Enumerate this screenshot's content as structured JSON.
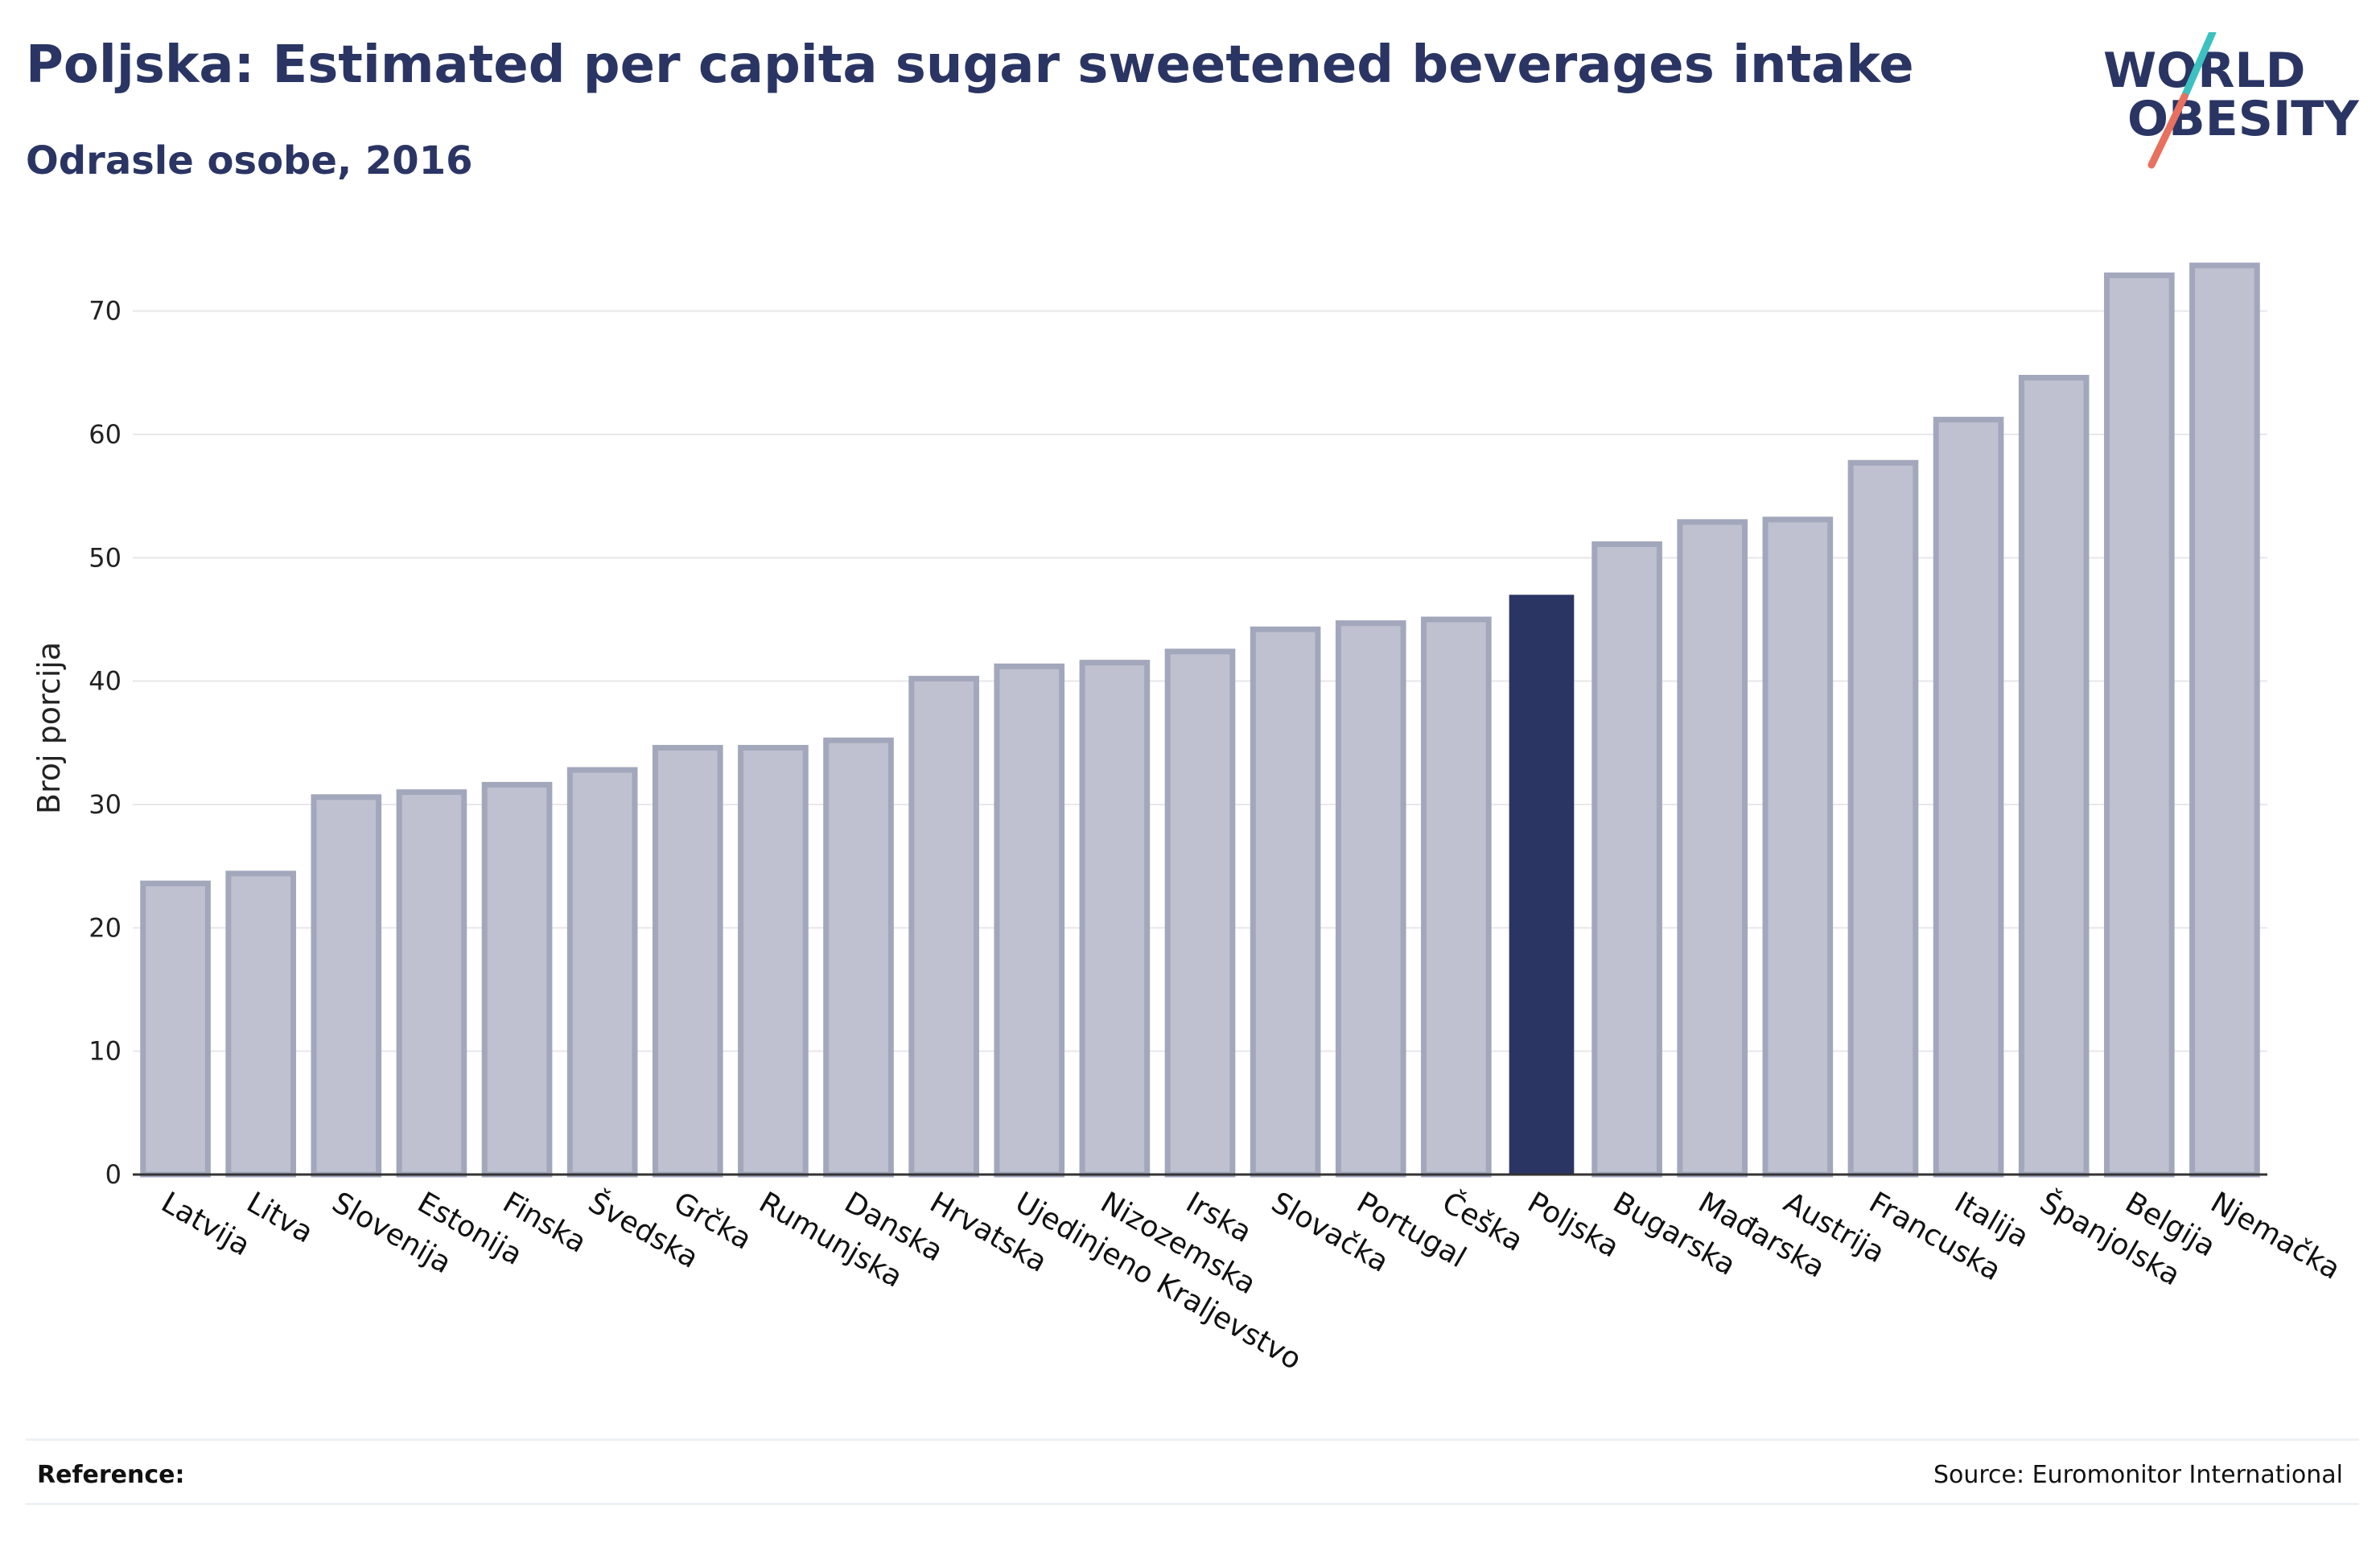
{
  "header": {
    "title": "Poljska: Estimated per capita sugar sweetened beverages intake",
    "subtitle": "Odrasle osobe, 2016"
  },
  "logo": {
    "line1": "WORLD",
    "line2": "OBESITY",
    "icon": "slash-logo-icon",
    "colors": {
      "text": "#2a3564",
      "slash_top": "#3cc1c0",
      "slash_bottom": "#e8705f"
    }
  },
  "footer": {
    "reference_label": "Reference:",
    "source": "Source: Euromonitor International"
  },
  "chart_data": {
    "type": "bar",
    "title": "Poljska: Estimated per capita sugar sweetened beverages intake",
    "subtitle": "Odrasle osobe, 2016",
    "xlabel": "",
    "ylabel": "Broj porcija",
    "ylim": [
      0,
      75
    ],
    "yticks": [
      0,
      10,
      20,
      30,
      40,
      50,
      60,
      70
    ],
    "grid": true,
    "highlight": "Poljska",
    "colors": {
      "bar": "#bfc1d0",
      "bar_border": "#a3a7bc",
      "highlight": "#2a3564",
      "grid": "#e8e8e8",
      "axis": "#333333"
    },
    "categories": [
      "Latvija",
      "Litva",
      "Slovenija",
      "Estonija",
      "Finska",
      "Švedska",
      "Grčka",
      "Rumunjska",
      "Danska",
      "Hrvatska",
      "Ujedinjeno Kraljevstvo",
      "Nizozemska",
      "Irska",
      "Slovačka",
      "Portugal",
      "Češka",
      "Poljska",
      "Bugarska",
      "Mađarska",
      "Austrija",
      "Francuska",
      "Italija",
      "Španjolska",
      "Belgija",
      "Njemačka"
    ],
    "values": [
      23.6,
      24.4,
      30.6,
      31.0,
      31.6,
      32.8,
      34.6,
      34.6,
      35.2,
      40.2,
      41.2,
      41.5,
      42.4,
      44.2,
      44.7,
      45.0,
      47.0,
      51.1,
      52.9,
      53.1,
      57.7,
      61.2,
      64.6,
      72.9,
      73.7
    ]
  }
}
